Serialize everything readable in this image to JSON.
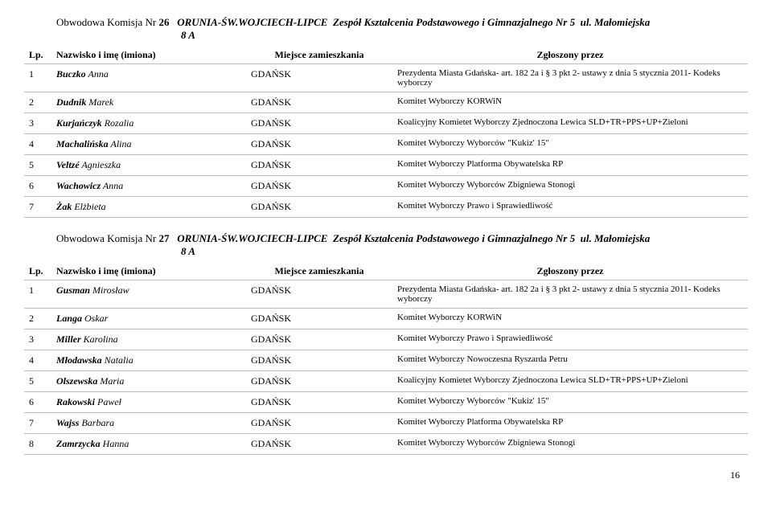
{
  "page_number": "16",
  "columns": {
    "lp": "Lp.",
    "name": "Nazwisko i imę (imiona)",
    "place": "Miejsce zamieszkania",
    "by": "Zgłoszony przez"
  },
  "commissions": [
    {
      "header": {
        "prefix": "Obwodowa Komisja Nr",
        "number": "26",
        "district": "ORUNIA-ŚW.WOJCIECH-LIPCE",
        "venue": "Zespół Kształcenia Podstawowego i Gimnazjalnego Nr 5",
        "street": "ul. Małomiejska",
        "line2": "8 A"
      },
      "rows": [
        {
          "lp": "1",
          "surname": "Buczko",
          "given": "Anna",
          "place": "GDAŃSK",
          "by": "Prezydenta Miasta Gdańska- art. 182 2a i § 3 pkt 2- ustawy z dnia 5 stycznia 2011- Kodeks wyborczy"
        },
        {
          "lp": "2",
          "surname": "Dudnik",
          "given": "Marek",
          "place": "GDAŃSK",
          "by": "Komitet Wyborczy KORWiN"
        },
        {
          "lp": "3",
          "surname": "Kurjańczyk",
          "given": "Rozalia",
          "place": "GDAŃSK",
          "by": "Koalicyjny Komietet Wyborczy Zjednoczona Lewica SLD+TR+PPS+UP+Zieloni"
        },
        {
          "lp": "4",
          "surname": "Machalińska",
          "given": "Alina",
          "place": "GDAŃSK",
          "by": "Komitet Wyborczy Wyborców \"Kukiz' 15\""
        },
        {
          "lp": "5",
          "surname": "Veltzé",
          "given": "Agnieszka",
          "place": "GDAŃSK",
          "by": "Komitet Wyborczy Platforma Obywatelska RP"
        },
        {
          "lp": "6",
          "surname": "Wachowicz",
          "given": "Anna",
          "place": "GDAŃSK",
          "by": "Komitet Wyborczy Wyborców Zbigniewa Stonogi"
        },
        {
          "lp": "7",
          "surname": "Żak",
          "given": "Elżbieta",
          "place": "GDAŃSK",
          "by": "Komitet Wyborczy Prawo i Sprawiedliwość"
        }
      ]
    },
    {
      "header": {
        "prefix": "Obwodowa Komisja Nr",
        "number": "27",
        "district": "ORUNIA-ŚW.WOJCIECH-LIPCE",
        "venue": "Zespół Kształcenia Podstawowego i Gimnazjalnego Nr 5",
        "street": "ul. Małomiejska",
        "line2": "8 A"
      },
      "rows": [
        {
          "lp": "1",
          "surname": "Gusman",
          "given": "Mirosław",
          "place": "GDAŃSK",
          "by": "Prezydenta Miasta Gdańska- art. 182 2a i § 3 pkt 2- ustawy z dnia 5 stycznia 2011- Kodeks wyborczy"
        },
        {
          "lp": "2",
          "surname": "Langa",
          "given": "Oskar",
          "place": "GDAŃSK",
          "by": "Komitet Wyborczy KORWiN"
        },
        {
          "lp": "3",
          "surname": "Miller",
          "given": "Karolina",
          "place": "GDAŃSK",
          "by": "Komitet Wyborczy Prawo i Sprawiedliwość"
        },
        {
          "lp": "4",
          "surname": "Młodawska",
          "given": "Natalia",
          "place": "GDAŃSK",
          "by": "Komitet Wyborczy Nowoczesna Ryszarda Petru"
        },
        {
          "lp": "5",
          "surname": "Olszewska",
          "given": "Maria",
          "place": "GDAŃSK",
          "by": "Koalicyjny Komietet Wyborczy Zjednoczona Lewica SLD+TR+PPS+UP+Zieloni"
        },
        {
          "lp": "6",
          "surname": "Rakowski",
          "given": "Paweł",
          "place": "GDAŃSK",
          "by": "Komitet Wyborczy Wyborców \"Kukiz' 15\""
        },
        {
          "lp": "7",
          "surname": "Wajss",
          "given": "Barbara",
          "place": "GDAŃSK",
          "by": "Komitet Wyborczy Platforma Obywatelska RP"
        },
        {
          "lp": "8",
          "surname": "Zamrzycka",
          "given": "Hanna",
          "place": "GDAŃSK",
          "by": "Komitet Wyborczy Wyborców Zbigniewa Stonogi"
        }
      ]
    }
  ]
}
